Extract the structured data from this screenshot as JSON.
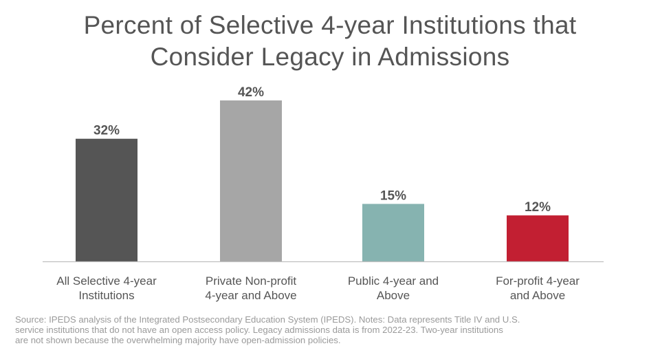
{
  "title_lines": [
    "Percent of Selective 4-year Institutions that",
    "Consider Legacy in Admissions"
  ],
  "chart_data": {
    "type": "bar",
    "title": "Percent of Selective 4-year Institutions that Consider Legacy in Admissions",
    "categories": [
      [
        "All Selective 4-year",
        "Institutions"
      ],
      [
        "Private Non-profit",
        "4-year and Above"
      ],
      [
        "Public 4-year and",
        "Above"
      ],
      [
        "For-profit 4-year",
        "and Above"
      ]
    ],
    "values": [
      32,
      42,
      15,
      12
    ],
    "value_labels": [
      "32%",
      "42%",
      "15%",
      "12%"
    ],
    "colors": [
      "#555555",
      "#a6a6a6",
      "#86b3b0",
      "#c21f32"
    ],
    "xlabel": "",
    "ylabel": "",
    "ylim": [
      0,
      42
    ],
    "grid": false
  },
  "source_lines": [
    "Source: IPEDS analysis of the Integrated Postsecondary Education System (IPEDS). Notes: Data represents Title IV and U.S.",
    "service institutions that do not have an open access policy. Legacy admissions data is from 2022-23. Two-year institutions",
    "are not shown because the overwhelming majority have open-admission policies."
  ]
}
